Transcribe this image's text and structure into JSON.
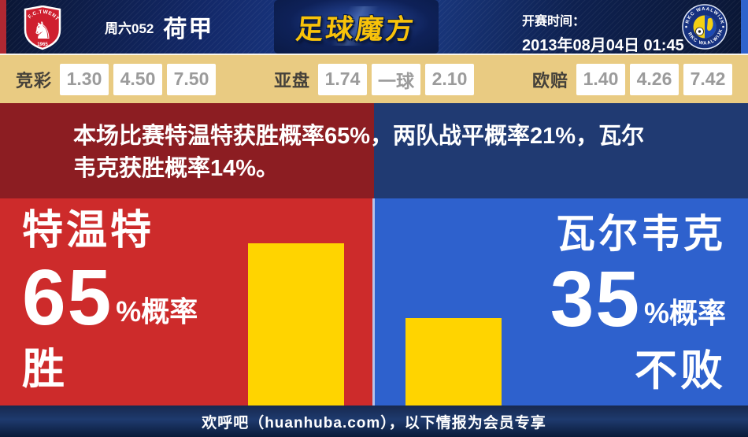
{
  "header": {
    "home_team": {
      "name": "F.C.TWENTE",
      "year": "1965"
    },
    "away_team": {
      "name": "RKC WAALWIJK"
    },
    "match_no": "周六052",
    "league": "荷甲",
    "site_logo": "足球魔方",
    "kickoff_label": "开赛时间：",
    "kickoff_time": "2013年08月04日 01:45"
  },
  "odds": {
    "groups": [
      {
        "label": "竞彩",
        "values": [
          "1.30",
          "4.50",
          "7.50"
        ]
      },
      {
        "label": "亚盘",
        "values": [
          "1.74",
          "一球",
          "2.10"
        ]
      },
      {
        "label": "欧赔",
        "values": [
          "1.40",
          "4.26",
          "7.42"
        ]
      }
    ]
  },
  "summary": {
    "line1": "本场比赛特温特获胜概率65%，两队战平概率21%，瓦尔",
    "line2": "韦克获胜概率14%。"
  },
  "panels": {
    "left": {
      "team": "特温特",
      "percent": "65",
      "suffix": "%概率",
      "outcome": "胜"
    },
    "right": {
      "team": "瓦尔韦克",
      "percent": "35",
      "suffix": "%概率",
      "outcome": "不败"
    }
  },
  "footer": {
    "text": "欢呼吧（huanhuba.com），以下情报为会员专享"
  },
  "chart_data": {
    "type": "bar",
    "categories": [
      "特温特",
      "瓦尔韦克"
    ],
    "values": [
      65,
      35
    ],
    "ylim": [
      0,
      100
    ],
    "bar_color": "#ffd400",
    "probabilities": {
      "home_win_pct": 65,
      "draw_pct": 21,
      "away_win_pct": 14
    }
  },
  "colors": {
    "home_accent": "#cd2b2b",
    "home_dark": "#8c1d22",
    "away_accent": "#2e61cd",
    "away_dark": "#203a72",
    "odds_bar_bg": "#e9cb82",
    "bar_yellow": "#ffd400",
    "logo_gold": "#f8c20a",
    "edge_red": "#b02832",
    "edge_blue": "#2f63cc"
  }
}
